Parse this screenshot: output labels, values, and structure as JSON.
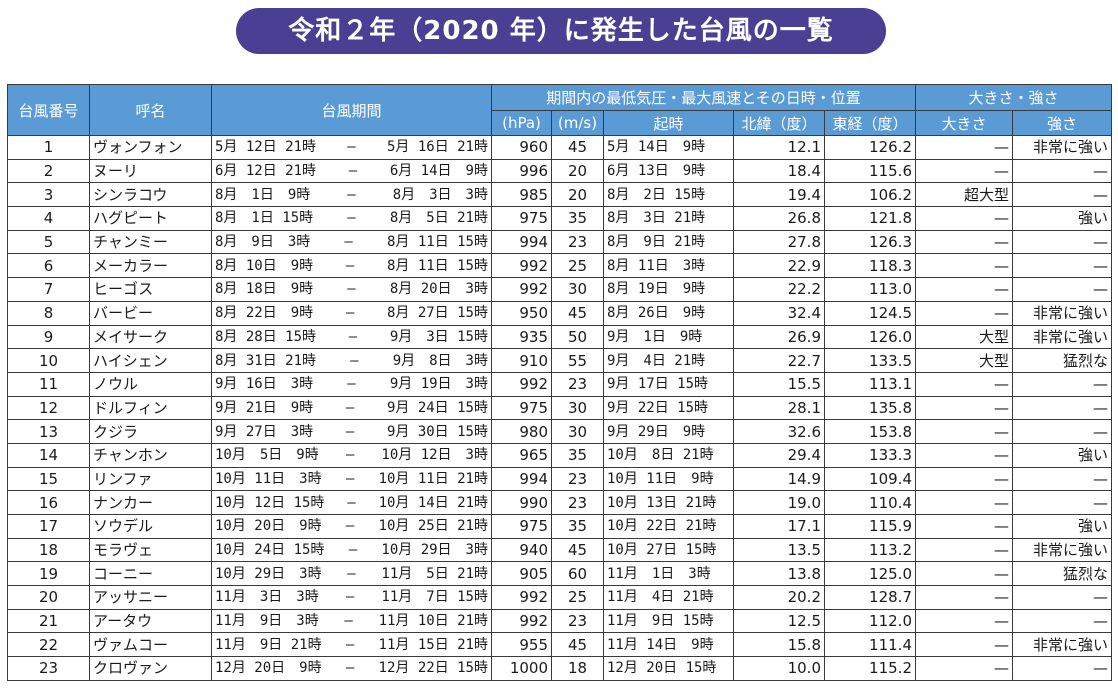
{
  "title": "令和２年（2020 年）に発生した台風の一覧",
  "header": {
    "col_number": "台風番号",
    "col_name": "呼名",
    "col_period": "台風期間",
    "group_peak": "期間内の最低気圧・最大風速とその日時・位置",
    "group_size": "大きさ・強さ",
    "col_pressure": "(hPa)",
    "col_wind": "(m/s)",
    "col_time": "起時",
    "col_lat": "北緯（度）",
    "col_lon": "東経（度）",
    "col_size": "大きさ",
    "col_strength": "強さ"
  },
  "rows": [
    {
      "no": "1",
      "name": "ヴォンフォン",
      "start": "5月 12日 21時",
      "end": "5月 16日 21時",
      "hpa": "960",
      "ms": "45",
      "time": "5月 14日　9時",
      "lat": "12.1",
      "lon": "126.2",
      "size": "—",
      "strength": "非常に強い"
    },
    {
      "no": "2",
      "name": "ヌーリ",
      "start": "6月 12日 21時",
      "end": "6月 14日　9時",
      "hpa": "996",
      "ms": "20",
      "time": "6月 13日　9時",
      "lat": "18.4",
      "lon": "115.6",
      "size": "—",
      "strength": "—"
    },
    {
      "no": "3",
      "name": "シンラコウ",
      "start": "8月　1日　9時",
      "end": "8月　3日　3時",
      "hpa": "985",
      "ms": "20",
      "time": "8月　2日 15時",
      "lat": "19.4",
      "lon": "106.2",
      "size": "超大型",
      "strength": "—"
    },
    {
      "no": "4",
      "name": "ハグピート",
      "start": "8月　1日 15時",
      "end": "8月　5日 21時",
      "hpa": "975",
      "ms": "35",
      "time": "8月　3日 21時",
      "lat": "26.8",
      "lon": "121.8",
      "size": "—",
      "strength": "強い"
    },
    {
      "no": "5",
      "name": "チャンミー",
      "start": "8月　9日　3時",
      "end": "8月 11日 15時",
      "hpa": "994",
      "ms": "23",
      "time": "8月　9日 21時",
      "lat": "27.8",
      "lon": "126.3",
      "size": "—",
      "strength": "—"
    },
    {
      "no": "6",
      "name": "メーカラー",
      "start": "8月 10日　9時",
      "end": "8月 11日 15時",
      "hpa": "992",
      "ms": "25",
      "time": "8月 11日　3時",
      "lat": "22.9",
      "lon": "118.3",
      "size": "—",
      "strength": "—"
    },
    {
      "no": "7",
      "name": "ヒーゴス",
      "start": "8月 18日　9時",
      "end": "8月 20日　3時",
      "hpa": "992",
      "ms": "30",
      "time": "8月 19日　9時",
      "lat": "22.2",
      "lon": "113.0",
      "size": "—",
      "strength": "—"
    },
    {
      "no": "8",
      "name": "バービー",
      "start": "8月 22日　9時",
      "end": "8月 27日 15時",
      "hpa": "950",
      "ms": "45",
      "time": "8月 26日　9時",
      "lat": "32.4",
      "lon": "124.5",
      "size": "—",
      "strength": "非常に強い"
    },
    {
      "no": "9",
      "name": "メイサーク",
      "start": "8月 28日 15時",
      "end": "9月　3日 15時",
      "hpa": "935",
      "ms": "50",
      "time": "9月　1日　9時",
      "lat": "26.9",
      "lon": "126.0",
      "size": "大型",
      "strength": "非常に強い"
    },
    {
      "no": "10",
      "name": "ハイシェン",
      "start": "8月 31日 21時",
      "end": "9月　8日　3時",
      "hpa": "910",
      "ms": "55",
      "time": "9月　4日 21時",
      "lat": "22.7",
      "lon": "133.5",
      "size": "大型",
      "strength": "猛烈な"
    },
    {
      "no": "11",
      "name": "ノウル",
      "start": "9月 16日　3時",
      "end": "9月 19日　3時",
      "hpa": "992",
      "ms": "23",
      "time": "9月 17日 15時",
      "lat": "15.5",
      "lon": "113.1",
      "size": "—",
      "strength": "—"
    },
    {
      "no": "12",
      "name": "ドルフィン",
      "start": "9月 21日　9時",
      "end": "9月 24日 15時",
      "hpa": "975",
      "ms": "30",
      "time": "9月 22日 15時",
      "lat": "28.1",
      "lon": "135.8",
      "size": "—",
      "strength": "—"
    },
    {
      "no": "13",
      "name": "クジラ",
      "start": "9月 27日　3時",
      "end": "9月 30日 15時",
      "hpa": "980",
      "ms": "30",
      "time": "9月 29日　9時",
      "lat": "32.6",
      "lon": "153.8",
      "size": "—",
      "strength": "—"
    },
    {
      "no": "14",
      "name": "チャンホン",
      "start": "10月　5日　9時",
      "end": "10月 12日　3時",
      "hpa": "965",
      "ms": "35",
      "time": "10月　8日 21時",
      "lat": "29.4",
      "lon": "133.3",
      "size": "—",
      "strength": "強い"
    },
    {
      "no": "15",
      "name": "リンファ",
      "start": "10月 11日　3時",
      "end": "10月 11日 21時",
      "hpa": "994",
      "ms": "23",
      "time": "10月 11日　9時",
      "lat": "14.9",
      "lon": "109.4",
      "size": "—",
      "strength": "—"
    },
    {
      "no": "16",
      "name": "ナンカー",
      "start": "10月 12日 15時",
      "end": "10月 14日 21時",
      "hpa": "990",
      "ms": "23",
      "time": "10月 13日 21時",
      "lat": "19.0",
      "lon": "110.4",
      "size": "—",
      "strength": "—"
    },
    {
      "no": "17",
      "name": "ソウデル",
      "start": "10月 20日　9時",
      "end": "10月 25日 21時",
      "hpa": "975",
      "ms": "35",
      "time": "10月 22日 21時",
      "lat": "17.1",
      "lon": "115.9",
      "size": "—",
      "strength": "強い"
    },
    {
      "no": "18",
      "name": "モラヴェ",
      "start": "10月 24日 15時",
      "end": "10月 29日　3時",
      "hpa": "940",
      "ms": "45",
      "time": "10月 27日 15時",
      "lat": "13.5",
      "lon": "113.2",
      "size": "—",
      "strength": "非常に強い"
    },
    {
      "no": "19",
      "name": "コーニー",
      "start": "10月 29日　3時",
      "end": "11月　5日 21時",
      "hpa": "905",
      "ms": "60",
      "time": "11月　1日　3時",
      "lat": "13.8",
      "lon": "125.0",
      "size": "—",
      "strength": "猛烈な"
    },
    {
      "no": "20",
      "name": "アッサニー",
      "start": "11月　3日　3時",
      "end": "11月　7日 15時",
      "hpa": "992",
      "ms": "25",
      "time": "11月　4日 21時",
      "lat": "20.2",
      "lon": "128.7",
      "size": "—",
      "strength": "—"
    },
    {
      "no": "21",
      "name": "アータウ",
      "start": "11月　9日　3時",
      "end": "11月 10日 21時",
      "hpa": "992",
      "ms": "23",
      "time": "11月　9日 15時",
      "lat": "12.5",
      "lon": "112.0",
      "size": "—",
      "strength": "—"
    },
    {
      "no": "22",
      "name": "ヴァムコー",
      "start": "11月　9日 21時",
      "end": "11月 15日 21時",
      "hpa": "955",
      "ms": "45",
      "time": "11月 14日　9時",
      "lat": "15.8",
      "lon": "111.4",
      "size": "—",
      "strength": "非常に強い"
    },
    {
      "no": "23",
      "name": "クロヴァン",
      "start": "12月 20日　9時",
      "end": "12月 22日 15時",
      "hpa": "1000",
      "ms": "18",
      "time": "12月 20日 15時",
      "lat": "10.0",
      "lon": "115.2",
      "size": "—",
      "strength": "—"
    }
  ],
  "dash": "—"
}
